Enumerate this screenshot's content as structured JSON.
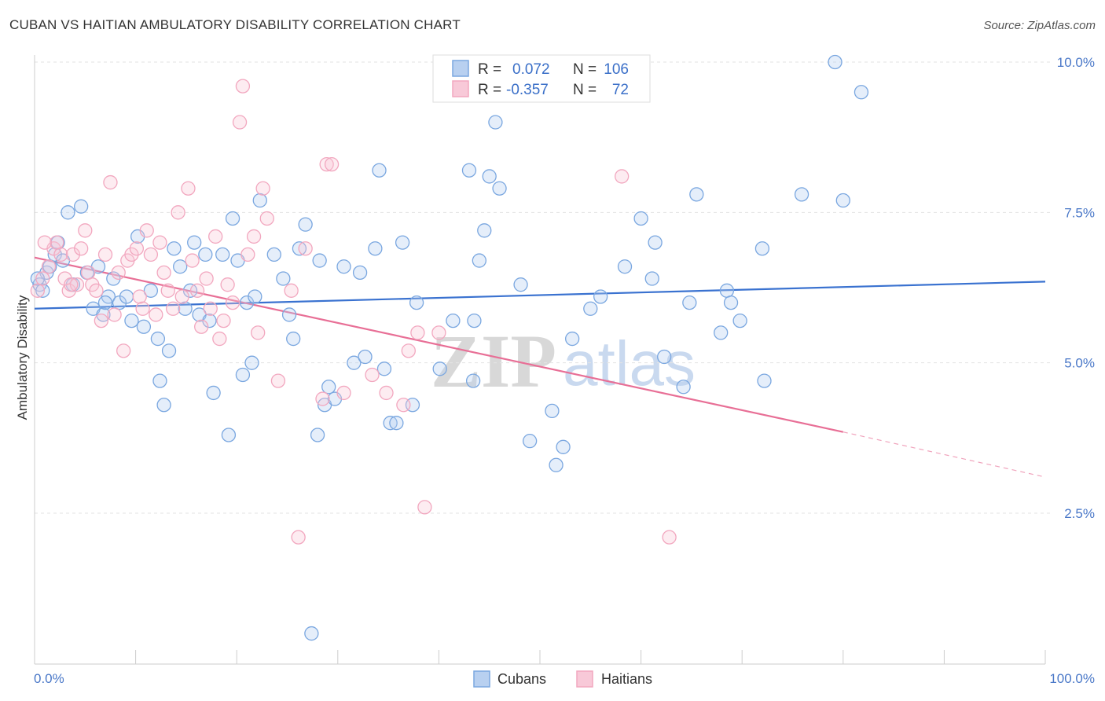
{
  "header": {
    "title": "CUBAN VS HAITIAN AMBULATORY DISABILITY CORRELATION CHART",
    "source": "Source: ZipAtlas.com"
  },
  "watermark": {
    "zip": "ZIP",
    "atlas": "atlas"
  },
  "legend": {
    "rows": [
      {
        "r_label": "R =",
        "r_value": "0.072",
        "n_label": "N =",
        "n_value": "106"
      },
      {
        "r_label": "R =",
        "r_value": "-0.357",
        "n_label": "N =",
        "n_value": "72"
      }
    ]
  },
  "bottom_legend": {
    "cubans": "Cubans",
    "haitians": "Haitians"
  },
  "chart_data": {
    "type": "scatter",
    "title": "CUBAN VS HAITIAN AMBULATORY DISABILITY CORRELATION CHART",
    "xlabel": "",
    "ylabel": "Ambulatory Disability",
    "xlim": [
      0,
      100
    ],
    "ylim": [
      0,
      10.5
    ],
    "x_tick_labels": [
      "0.0%",
      "100.0%"
    ],
    "y_ticks": [
      2.5,
      5.0,
      7.5,
      10.0
    ],
    "y_tick_labels": [
      "2.5%",
      "5.0%",
      "7.5%",
      "10.0%"
    ],
    "grid": true,
    "legend_position": "top-center",
    "series": [
      {
        "name": "Cubans",
        "color": "#7aa7e0",
        "r": 0.072,
        "n": 106,
        "trend": {
          "x": [
            0,
            100
          ],
          "y": [
            5.9,
            6.35
          ]
        },
        "points": [
          [
            0.5,
            6.3
          ],
          [
            0.8,
            6.2
          ],
          [
            1.2,
            6.5
          ],
          [
            2.0,
            6.8
          ],
          [
            2.3,
            7.0
          ],
          [
            2.8,
            6.7
          ],
          [
            3.3,
            7.5
          ],
          [
            3.8,
            6.3
          ],
          [
            4.6,
            7.6
          ],
          [
            5.2,
            6.5
          ],
          [
            5.8,
            5.9
          ],
          [
            6.3,
            6.6
          ],
          [
            6.8,
            5.8
          ],
          [
            7.3,
            6.1
          ],
          [
            7.8,
            6.4
          ],
          [
            8.4,
            6.0
          ],
          [
            9.1,
            6.1
          ],
          [
            9.6,
            5.7
          ],
          [
            10.2,
            7.1
          ],
          [
            10.8,
            5.6
          ],
          [
            11.5,
            6.2
          ],
          [
            12.2,
            5.4
          ],
          [
            12.4,
            4.7
          ],
          [
            12.8,
            4.3
          ],
          [
            13.3,
            5.2
          ],
          [
            13.8,
            6.9
          ],
          [
            14.4,
            6.6
          ],
          [
            14.9,
            5.9
          ],
          [
            15.4,
            6.2
          ],
          [
            15.8,
            7.0
          ],
          [
            16.3,
            5.8
          ],
          [
            16.9,
            6.8
          ],
          [
            17.3,
            5.7
          ],
          [
            17.7,
            4.5
          ],
          [
            18.6,
            6.8
          ],
          [
            19.2,
            3.8
          ],
          [
            19.6,
            7.4
          ],
          [
            20.1,
            6.7
          ],
          [
            20.6,
            4.8
          ],
          [
            21.0,
            6.0
          ],
          [
            21.5,
            5.0
          ],
          [
            21.8,
            6.1
          ],
          [
            22.3,
            7.7
          ],
          [
            23.7,
            6.8
          ],
          [
            24.6,
            6.4
          ],
          [
            25.2,
            5.8
          ],
          [
            25.6,
            5.4
          ],
          [
            26.2,
            6.9
          ],
          [
            26.8,
            7.3
          ],
          [
            27.4,
            0.5
          ],
          [
            28.0,
            3.8
          ],
          [
            28.2,
            6.7
          ],
          [
            28.7,
            4.3
          ],
          [
            29.1,
            4.6
          ],
          [
            29.7,
            4.4
          ],
          [
            30.6,
            6.6
          ],
          [
            31.6,
            5.0
          ],
          [
            32.2,
            6.5
          ],
          [
            32.7,
            5.1
          ],
          [
            33.7,
            6.9
          ],
          [
            34.1,
            8.2
          ],
          [
            34.6,
            4.9
          ],
          [
            35.2,
            4.0
          ],
          [
            35.8,
            4.0
          ],
          [
            36.4,
            7.0
          ],
          [
            37.4,
            4.3
          ],
          [
            37.8,
            6.0
          ],
          [
            40.1,
            4.9
          ],
          [
            41.4,
            5.7
          ],
          [
            43.0,
            8.2
          ],
          [
            43.4,
            4.7
          ],
          [
            43.5,
            5.7
          ],
          [
            44.0,
            6.7
          ],
          [
            44.5,
            7.2
          ],
          [
            45.0,
            8.1
          ],
          [
            45.6,
            9.0
          ],
          [
            46.0,
            7.9
          ],
          [
            48.1,
            6.3
          ],
          [
            49.0,
            3.7
          ],
          [
            51.2,
            4.2
          ],
          [
            51.6,
            3.3
          ],
          [
            52.3,
            3.6
          ],
          [
            53.2,
            5.4
          ],
          [
            55.0,
            5.9
          ],
          [
            56.0,
            6.1
          ],
          [
            58.4,
            6.6
          ],
          [
            60.0,
            7.4
          ],
          [
            61.1,
            6.4
          ],
          [
            61.4,
            7.0
          ],
          [
            62.3,
            5.1
          ],
          [
            64.2,
            4.6
          ],
          [
            64.8,
            6.0
          ],
          [
            65.5,
            7.8
          ],
          [
            67.9,
            5.5
          ],
          [
            68.5,
            6.2
          ],
          [
            68.9,
            6.0
          ],
          [
            69.8,
            5.7
          ],
          [
            72.0,
            6.9
          ],
          [
            72.2,
            4.7
          ],
          [
            75.9,
            7.8
          ],
          [
            79.2,
            10.0
          ],
          [
            80.0,
            7.7
          ],
          [
            81.8,
            9.5
          ],
          [
            0.3,
            6.4
          ],
          [
            1.5,
            6.6
          ],
          [
            7.0,
            6.0
          ]
        ]
      },
      {
        "name": "Haitians",
        "color": "#f2a7bf",
        "r": -0.357,
        "n": 72,
        "trend": {
          "x": [
            0,
            80
          ],
          "y": [
            6.75,
            3.85
          ]
        },
        "trend_dashed": {
          "x": [
            80,
            100
          ],
          "y": [
            3.85,
            3.1
          ]
        },
        "points": [
          [
            0.3,
            6.2
          ],
          [
            0.8,
            6.4
          ],
          [
            1.4,
            6.6
          ],
          [
            1.9,
            6.9
          ],
          [
            2.2,
            7.0
          ],
          [
            2.6,
            6.8
          ],
          [
            3.0,
            6.4
          ],
          [
            3.4,
            6.2
          ],
          [
            3.8,
            6.8
          ],
          [
            4.2,
            6.3
          ],
          [
            4.6,
            6.9
          ],
          [
            5.0,
            7.2
          ],
          [
            5.3,
            6.5
          ],
          [
            5.7,
            6.3
          ],
          [
            6.1,
            6.2
          ],
          [
            6.6,
            5.7
          ],
          [
            7.0,
            6.8
          ],
          [
            7.5,
            8.0
          ],
          [
            7.9,
            5.8
          ],
          [
            8.3,
            6.5
          ],
          [
            8.8,
            5.2
          ],
          [
            9.2,
            6.7
          ],
          [
            9.6,
            6.8
          ],
          [
            10.1,
            6.9
          ],
          [
            10.4,
            6.1
          ],
          [
            10.7,
            5.9
          ],
          [
            11.1,
            7.2
          ],
          [
            11.5,
            6.8
          ],
          [
            12.0,
            5.8
          ],
          [
            12.4,
            7.0
          ],
          [
            12.8,
            6.5
          ],
          [
            13.2,
            6.2
          ],
          [
            13.7,
            5.9
          ],
          [
            14.2,
            7.5
          ],
          [
            14.6,
            6.1
          ],
          [
            15.2,
            7.9
          ],
          [
            15.6,
            6.7
          ],
          [
            16.1,
            6.2
          ],
          [
            16.5,
            5.6
          ],
          [
            17.0,
            6.4
          ],
          [
            17.4,
            5.9
          ],
          [
            17.9,
            7.1
          ],
          [
            18.3,
            5.4
          ],
          [
            18.7,
            5.7
          ],
          [
            19.1,
            6.3
          ],
          [
            19.6,
            6.0
          ],
          [
            20.3,
            9.0
          ],
          [
            21.1,
            6.8
          ],
          [
            21.7,
            7.1
          ],
          [
            22.1,
            5.5
          ],
          [
            22.6,
            7.9
          ],
          [
            23.0,
            7.4
          ],
          [
            24.1,
            4.7
          ],
          [
            25.4,
            6.2
          ],
          [
            26.8,
            6.9
          ],
          [
            28.5,
            4.4
          ],
          [
            28.9,
            8.3
          ],
          [
            29.4,
            8.3
          ],
          [
            30.6,
            4.5
          ],
          [
            33.4,
            4.8
          ],
          [
            34.8,
            4.5
          ],
          [
            36.5,
            4.3
          ],
          [
            37.0,
            5.2
          ],
          [
            37.9,
            5.5
          ],
          [
            38.6,
            2.6
          ],
          [
            40.0,
            5.5
          ],
          [
            26.1,
            2.1
          ],
          [
            20.6,
            9.6
          ],
          [
            58.1,
            8.1
          ],
          [
            62.8,
            2.1
          ],
          [
            1.0,
            7.0
          ],
          [
            3.6,
            6.3
          ]
        ]
      }
    ]
  }
}
